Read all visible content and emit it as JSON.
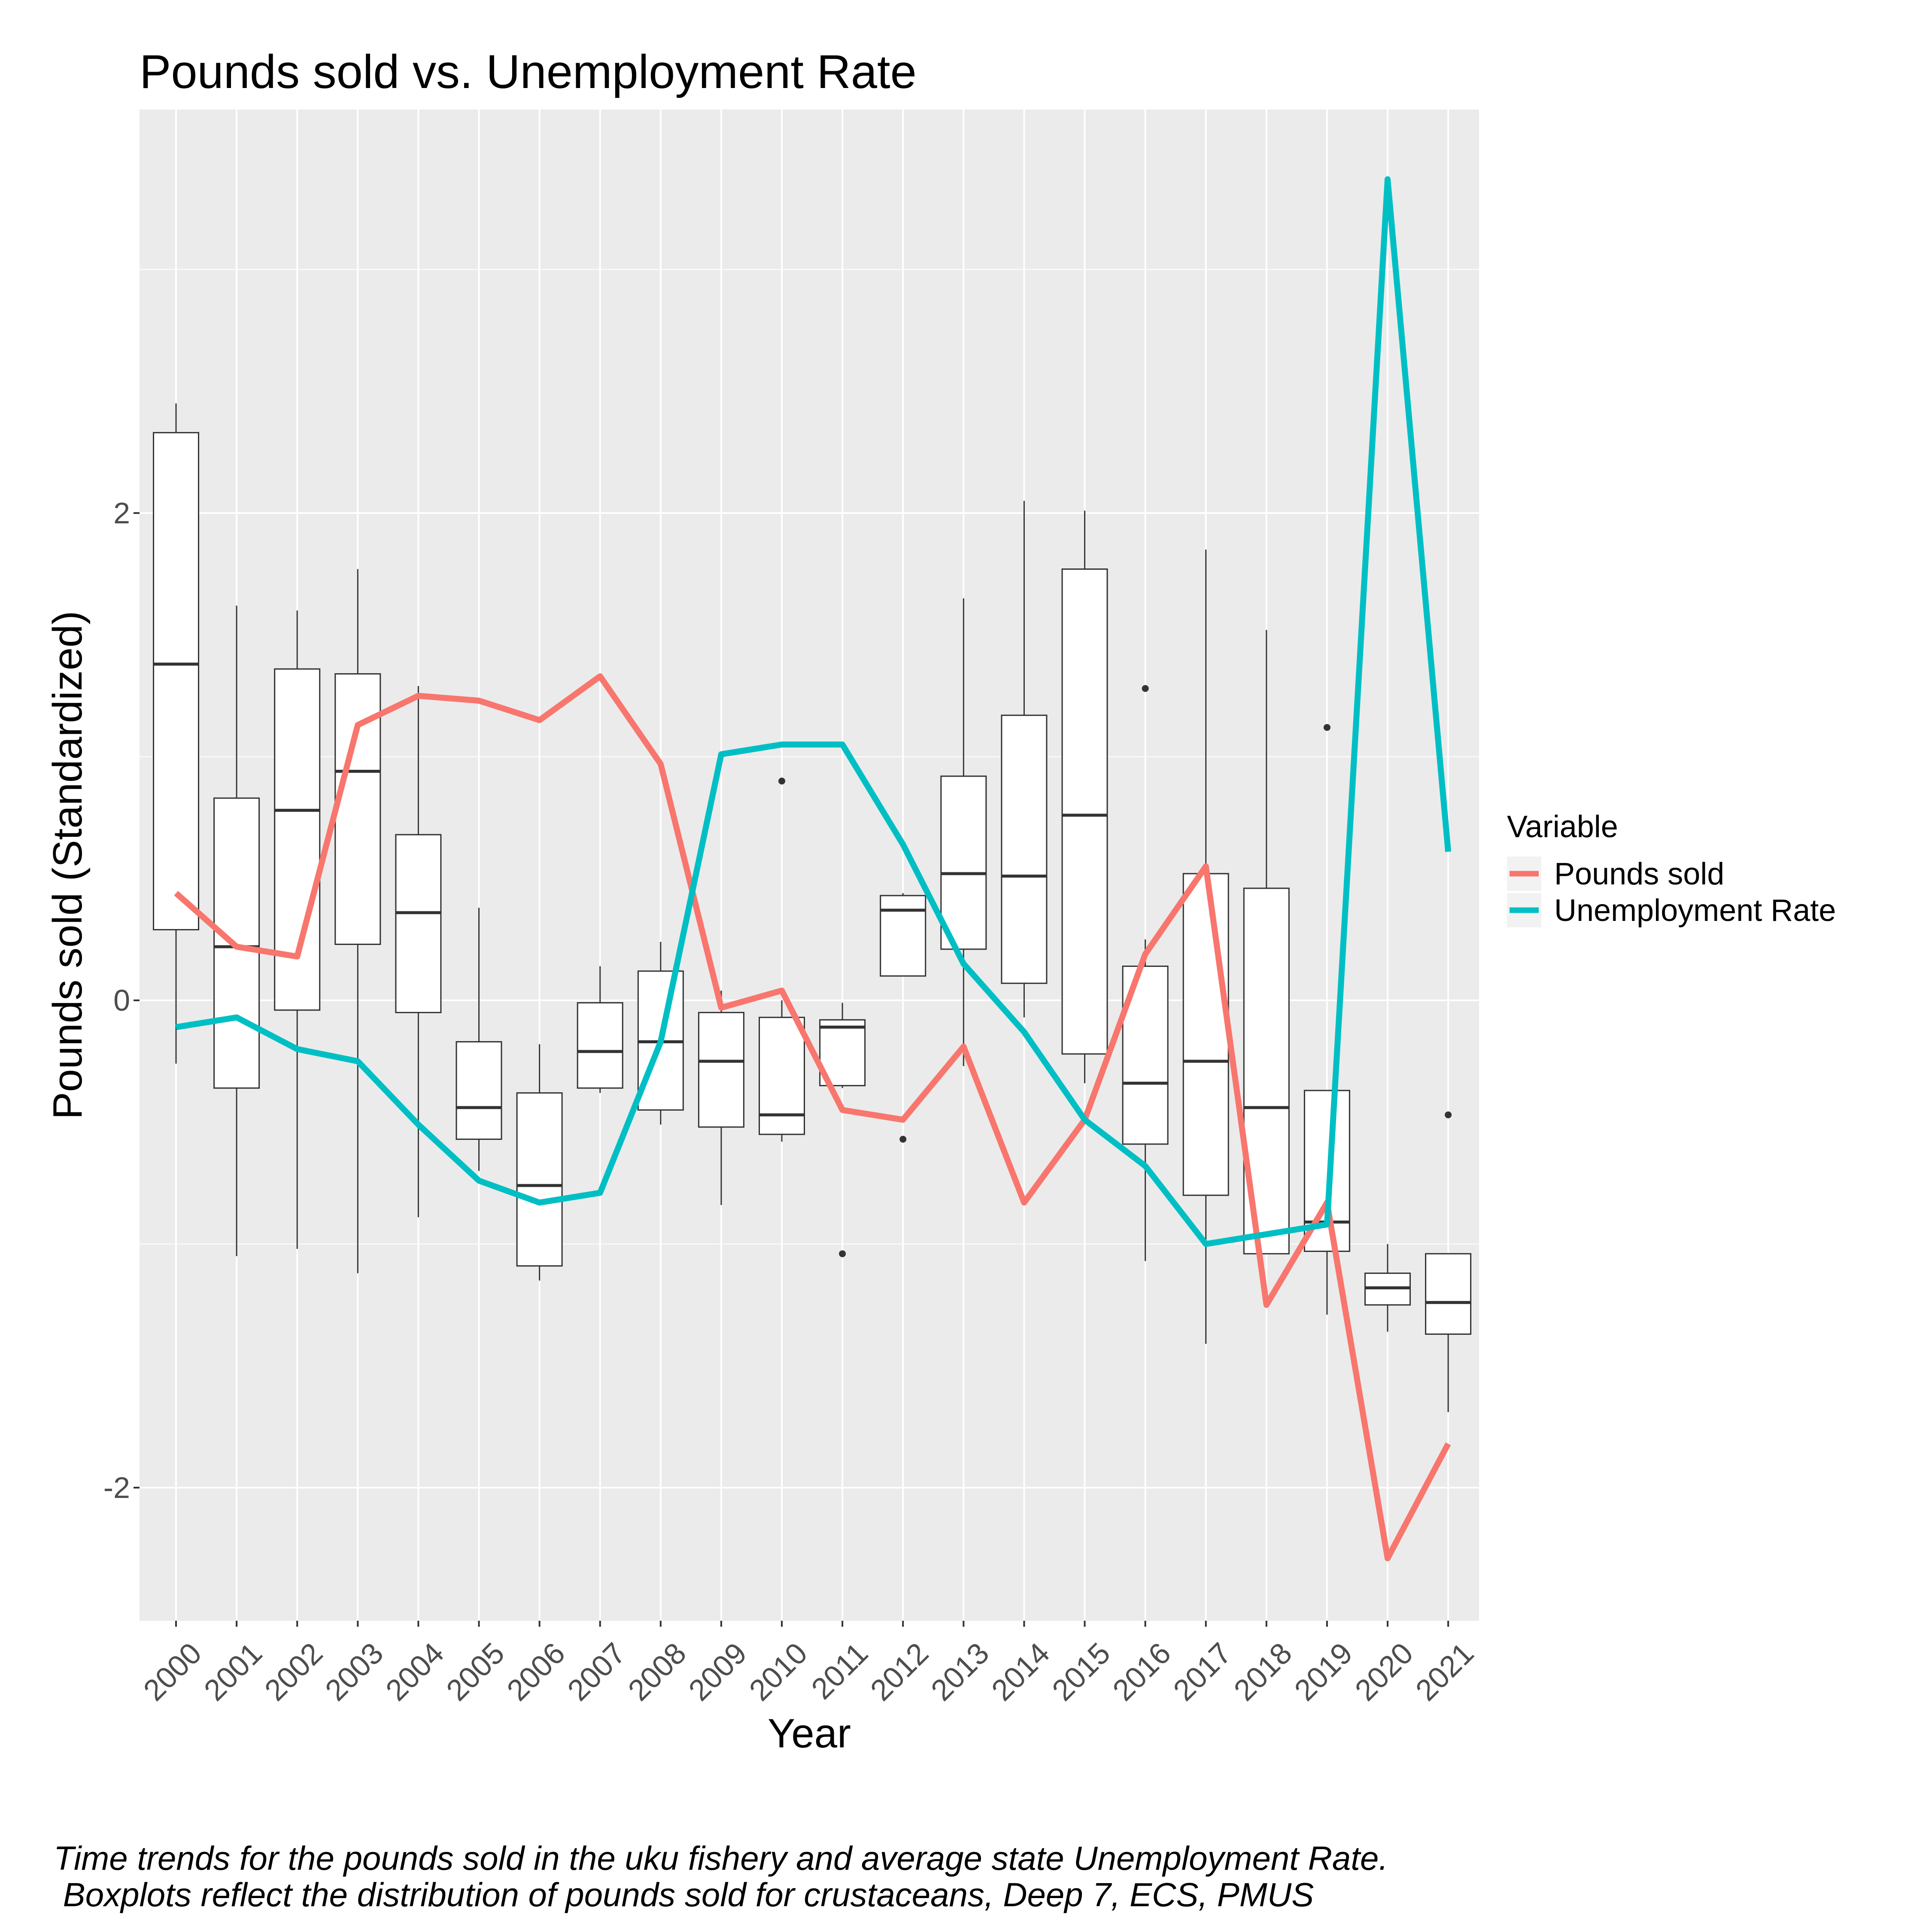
{
  "chart_data": {
    "type": "boxplot+line",
    "title": "Pounds sold vs. Unemployment Rate",
    "xlabel": "Year",
    "ylabel": "Pounds sold (Standardized)",
    "ylim": [
      -2.5,
      3.6
    ],
    "yticks": [
      -2,
      0,
      2
    ],
    "ytick_labels": [
      "-2",
      "0",
      "2"
    ],
    "grid": true,
    "categories": [
      "2000",
      "2001",
      "2002",
      "2003",
      "2004",
      "2005",
      "2006",
      "2007",
      "2008",
      "2009",
      "2010",
      "2011",
      "2012",
      "2013",
      "2014",
      "2015",
      "2016",
      "2017",
      "2018",
      "2019",
      "2020",
      "2021"
    ],
    "boxes": [
      {
        "year": "2000",
        "min": -0.26,
        "q1": 0.29,
        "median": 1.38,
        "q3": 2.33,
        "max": 2.45,
        "outliers": []
      },
      {
        "year": "2001",
        "min": -1.05,
        "q1": -0.36,
        "median": 0.22,
        "q3": 0.83,
        "max": 1.62,
        "outliers": []
      },
      {
        "year": "2002",
        "min": -1.02,
        "q1": -0.04,
        "median": 0.78,
        "q3": 1.36,
        "max": 1.6,
        "outliers": []
      },
      {
        "year": "2003",
        "min": -1.12,
        "q1": 0.23,
        "median": 0.94,
        "q3": 1.34,
        "max": 1.77,
        "outliers": []
      },
      {
        "year": "2004",
        "min": -0.89,
        "q1": -0.05,
        "median": 0.36,
        "q3": 0.68,
        "max": 1.29,
        "outliers": []
      },
      {
        "year": "2005",
        "min": -0.7,
        "q1": -0.57,
        "median": -0.44,
        "q3": -0.17,
        "max": 0.38,
        "outliers": []
      },
      {
        "year": "2006",
        "min": -1.15,
        "q1": -1.09,
        "median": -0.76,
        "q3": -0.38,
        "max": -0.18,
        "outliers": []
      },
      {
        "year": "2007",
        "min": -0.38,
        "q1": -0.36,
        "median": -0.21,
        "q3": -0.01,
        "max": 0.14,
        "outliers": []
      },
      {
        "year": "2008",
        "min": -0.51,
        "q1": -0.45,
        "median": -0.17,
        "q3": 0.12,
        "max": 0.24,
        "outliers": []
      },
      {
        "year": "2009",
        "min": -0.84,
        "q1": -0.52,
        "median": -0.25,
        "q3": -0.05,
        "max": 0.04,
        "outliers": []
      },
      {
        "year": "2010",
        "min": -0.58,
        "q1": -0.55,
        "median": -0.47,
        "q3": -0.07,
        "max": 0.0,
        "outliers": [
          0.9
        ]
      },
      {
        "year": "2011",
        "min": -0.36,
        "q1": -0.35,
        "median": -0.11,
        "q3": -0.08,
        "max": -0.01,
        "outliers": [
          -1.04
        ]
      },
      {
        "year": "2012",
        "min": 0.1,
        "q1": 0.1,
        "median": 0.37,
        "q3": 0.43,
        "max": 0.44,
        "outliers": [
          -0.57
        ]
      },
      {
        "year": "2013",
        "min": -0.27,
        "q1": 0.21,
        "median": 0.52,
        "q3": 0.92,
        "max": 1.65,
        "outliers": []
      },
      {
        "year": "2014",
        "min": -0.07,
        "q1": 0.07,
        "median": 0.51,
        "q3": 1.17,
        "max": 2.05,
        "outliers": []
      },
      {
        "year": "2015",
        "min": -0.34,
        "q1": -0.22,
        "median": 0.76,
        "q3": 1.77,
        "max": 2.01,
        "outliers": []
      },
      {
        "year": "2016",
        "min": -1.07,
        "q1": -0.59,
        "median": -0.34,
        "q3": 0.14,
        "max": 0.25,
        "outliers": [
          1.28
        ]
      },
      {
        "year": "2017",
        "min": -1.41,
        "q1": -0.8,
        "median": -0.25,
        "q3": 0.52,
        "max": 1.85,
        "outliers": []
      },
      {
        "year": "2018",
        "min": -1.04,
        "q1": -1.04,
        "median": -0.44,
        "q3": 0.46,
        "max": 1.52,
        "outliers": []
      },
      {
        "year": "2019",
        "min": -1.29,
        "q1": -1.03,
        "median": -0.91,
        "q3": -0.37,
        "max": -0.37,
        "outliers": [
          1.12
        ]
      },
      {
        "year": "2020",
        "min": -1.36,
        "q1": -1.25,
        "median": -1.18,
        "q3": -1.12,
        "max": -1.0,
        "outliers": []
      },
      {
        "year": "2021",
        "min": -1.69,
        "q1": -1.37,
        "median": -1.24,
        "q3": -1.04,
        "max": -1.04,
        "outliers": [
          -0.47
        ]
      }
    ],
    "series": [
      {
        "name": "Pounds sold",
        "color": "#F8766D",
        "values": [
          0.44,
          0.22,
          0.18,
          1.13,
          1.25,
          1.23,
          1.15,
          1.33,
          0.97,
          -0.03,
          0.04,
          -0.45,
          -0.49,
          -0.19,
          -0.83,
          -0.49,
          0.19,
          0.55,
          -1.25,
          -0.83,
          -2.29,
          -1.82
        ]
      },
      {
        "name": "Unemployment Rate",
        "color": "#00BFC4",
        "values": [
          -0.11,
          -0.07,
          -0.2,
          -0.25,
          -0.51,
          -0.74,
          -0.83,
          -0.79,
          -0.17,
          1.01,
          1.05,
          1.05,
          0.64,
          0.15,
          -0.13,
          -0.49,
          -0.68,
          -1.0,
          -0.96,
          -0.92,
          3.37,
          0.61
        ]
      }
    ],
    "legend": {
      "title": "Variable",
      "position": "right",
      "entries": [
        "Pounds sold",
        "Unemployment Rate"
      ]
    },
    "caption_lines": [
      "Time trends for the pounds sold in the uku fishery and average state Unemployment Rate.",
      " Boxplots reflect the distribution of pounds sold for crustaceans, Deep 7, ECS, PMUS"
    ],
    "colors": {
      "panel": "#EBEBEB",
      "grid_major": "#FFFFFF",
      "box_fill": "#FFFFFF",
      "box_stroke": "#333333",
      "text": "#000000",
      "tick_text": "#4D4D4D"
    }
  }
}
